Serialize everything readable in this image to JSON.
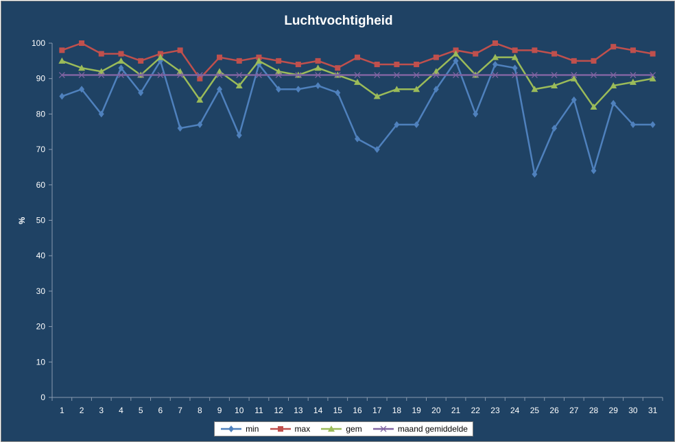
{
  "chart_data": {
    "type": "line",
    "title": "Luchtvochtigheid",
    "xlabel": "",
    "ylabel": "%",
    "ylim": [
      0,
      100
    ],
    "yticks": [
      0,
      10,
      20,
      30,
      40,
      50,
      60,
      70,
      80,
      90,
      100
    ],
    "grid": false,
    "legend_position": "bottom",
    "categories": [
      "1",
      "2",
      "3",
      "4",
      "5",
      "6",
      "7",
      "8",
      "9",
      "10",
      "11",
      "12",
      "13",
      "14",
      "15",
      "16",
      "17",
      "18",
      "19",
      "20",
      "21",
      "22",
      "23",
      "24",
      "25",
      "26",
      "27",
      "28",
      "29",
      "30",
      "31"
    ],
    "series": [
      {
        "name": "min",
        "color": "#4f81bd",
        "marker": "diamond",
        "values": [
          85,
          87,
          80,
          93,
          86,
          95,
          76,
          77,
          87,
          74,
          94,
          87,
          87,
          88,
          86,
          73,
          70,
          77,
          77,
          87,
          95,
          80,
          94,
          93,
          63,
          76,
          84,
          64,
          83,
          77,
          77
        ]
      },
      {
        "name": "max",
        "color": "#c0504d",
        "marker": "square",
        "values": [
          98,
          100,
          97,
          97,
          95,
          97,
          98,
          90,
          96,
          95,
          96,
          95,
          94,
          95,
          93,
          96,
          94,
          94,
          94,
          96,
          98,
          97,
          100,
          98,
          98,
          97,
          95,
          95,
          99,
          98,
          97
        ]
      },
      {
        "name": "gem",
        "color": "#9bbb59",
        "marker": "triangle",
        "values": [
          95,
          93,
          92,
          95,
          91,
          96,
          92,
          84,
          92,
          88,
          95,
          92,
          91,
          93,
          91,
          89,
          85,
          87,
          87,
          92,
          97,
          91,
          96,
          96,
          87,
          88,
          90,
          82,
          88,
          89,
          90
        ]
      },
      {
        "name": "maand gemiddelde",
        "color": "#8064a2",
        "marker": "x",
        "values": [
          91,
          91,
          91,
          91,
          91,
          91,
          91,
          91,
          91,
          91,
          91,
          91,
          91,
          91,
          91,
          91,
          91,
          91,
          91,
          91,
          91,
          91,
          91,
          91,
          91,
          91,
          91,
          91,
          91,
          91,
          91
        ]
      }
    ]
  }
}
